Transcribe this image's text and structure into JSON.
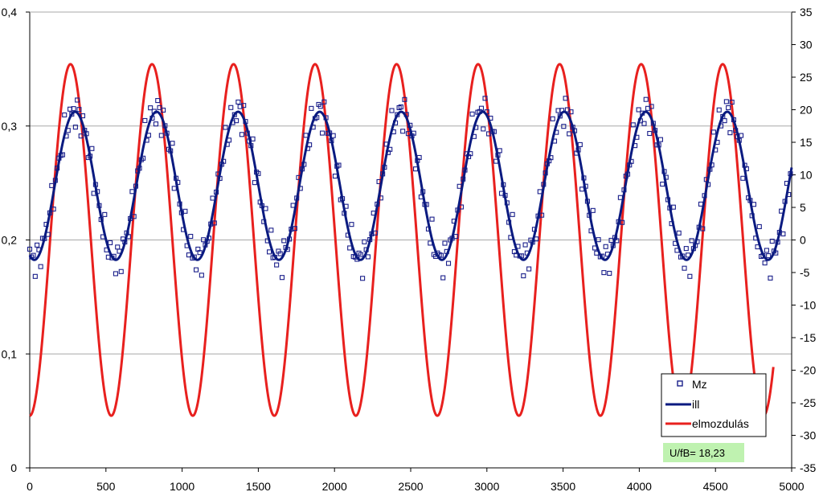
{
  "chart_data": {
    "type": "line",
    "title": "",
    "xlabel": "",
    "ylabel": "",
    "y2label": "",
    "xlim": [
      0,
      5000
    ],
    "ylim": [
      0,
      0.4
    ],
    "y2lim": [
      -35,
      35
    ],
    "x_ticks": [
      "0",
      "500",
      "1000",
      "1500",
      "2000",
      "2500",
      "3000",
      "3500",
      "4000",
      "4500",
      "5000"
    ],
    "y_ticks": [
      "0",
      "0,1",
      "0,2",
      "0,3",
      "0,4"
    ],
    "y2_ticks": [
      "35",
      "30",
      "25",
      "20",
      "15",
      "10",
      "5",
      "0",
      "-5",
      "-10",
      "-15",
      "-20",
      "-25",
      "-30",
      "-35"
    ],
    "grid": "horizontal",
    "legend_position": "bottom-right",
    "series": [
      {
        "name": "Mz",
        "kind": "scatter",
        "axis": "left",
        "color": "#1a1f8a",
        "marker": "open-square",
        "model": {
          "center": 0.2475,
          "amplitude": 0.065,
          "period": 535,
          "phase_x": 30
        },
        "sample_step": 12
      },
      {
        "name": "ill",
        "kind": "line",
        "axis": "left",
        "color": "#0a1a80",
        "model": {
          "center": 0.2475,
          "amplitude": 0.065,
          "period": 535,
          "phase_x": 30
        }
      },
      {
        "name": "elmozdulás",
        "kind": "line",
        "axis": "right",
        "color": "#e8201e",
        "model": {
          "center": 0,
          "amplitude": 27,
          "period": 535,
          "phase_x": 0
        },
        "x_end": 4880
      }
    ],
    "annotation": "U/fB= 18,23"
  },
  "colors": {
    "grid": "#a8a8a8",
    "axis": "#000000",
    "annotation_bg": "#bff2b0"
  }
}
